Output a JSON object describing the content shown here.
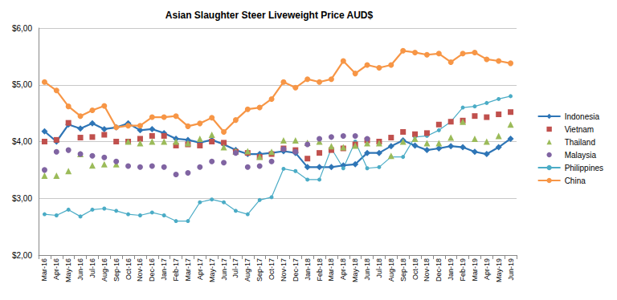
{
  "chart_data": {
    "type": "line",
    "title": "Asian Slaughter Steer Liveweight Price AUD$",
    "categories": [
      "Mar-16",
      "Apr-16",
      "May-16",
      "Jun-16",
      "Jul-16",
      "Aug-16",
      "Sep-16",
      "Oct-16",
      "Nov-16",
      "Dec-16",
      "Jan-17",
      "Feb-17",
      "Mar-17",
      "Apr-17",
      "May-17",
      "Jun-17",
      "Jul-17",
      "Aug-17",
      "Sep-17",
      "Oct-17",
      "Nov-17",
      "Dec-17",
      "Jan-18",
      "Feb-18",
      "Mar-18",
      "Apr-18",
      "May-18",
      "Jun-18",
      "Jul-18",
      "Aug-18",
      "Sep-18",
      "Oct-18",
      "Nov-18",
      "Dec-18",
      "Jan-19",
      "Feb-19",
      "Mar-19",
      "Apr-19",
      "May-19",
      "Jun-19"
    ],
    "ylim": [
      2,
      6
    ],
    "yticks": [
      {
        "value": 2,
        "label": "$2,00"
      },
      {
        "value": 3,
        "label": "$3,00"
      },
      {
        "value": 4,
        "label": "$4,00"
      },
      {
        "value": 5,
        "label": "$5,00"
      },
      {
        "value": 6,
        "label": "$6,00"
      }
    ],
    "grid": true,
    "legend": "right",
    "series": [
      {
        "name": "Indonesia",
        "color": "#2e75b6",
        "marker": "diamond",
        "line_style": "solid",
        "values": [
          4.18,
          4.0,
          4.3,
          4.23,
          4.32,
          4.22,
          4.25,
          4.32,
          4.2,
          4.22,
          4.15,
          4.05,
          4.03,
          3.98,
          4.03,
          3.95,
          3.85,
          3.78,
          3.78,
          3.8,
          3.83,
          3.8,
          3.55,
          3.55,
          3.55,
          3.58,
          3.6,
          3.8,
          3.8,
          3.92,
          4.02,
          3.93,
          3.85,
          3.88,
          3.92,
          3.9,
          3.82,
          3.78,
          3.9,
          4.05
        ]
      },
      {
        "name": "Vietnam",
        "color": "#c0504d",
        "marker": "square",
        "line_style": "none",
        "values": [
          4.0,
          4.03,
          4.33,
          4.07,
          4.08,
          4.12,
          4.0,
          4.0,
          4.05,
          4.1,
          4.1,
          3.93,
          3.95,
          3.93,
          4.0,
          3.98,
          3.82,
          3.8,
          3.73,
          3.78,
          3.88,
          3.85,
          3.7,
          3.8,
          3.85,
          3.88,
          3.95,
          4.02,
          4.0,
          4.07,
          4.17,
          4.13,
          4.15,
          4.3,
          4.35,
          4.37,
          4.45,
          4.43,
          4.48,
          4.52
        ]
      },
      {
        "name": "Thailand",
        "color": "#9bbb59",
        "marker": "triangle",
        "line_style": "none",
        "values": [
          3.4,
          3.4,
          3.48,
          3.78,
          3.58,
          3.6,
          3.6,
          4.0,
          3.97,
          4.0,
          4.0,
          4.0,
          3.97,
          4.05,
          4.12,
          3.9,
          3.83,
          3.83,
          3.73,
          3.82,
          4.02,
          4.02,
          3.98,
          4.0,
          3.92,
          3.9,
          3.93,
          3.97,
          3.97,
          3.75,
          4.0,
          4.05,
          3.97,
          3.97,
          4.07,
          4.35,
          4.05,
          4.0,
          4.1,
          4.3
        ]
      },
      {
        "name": "Malaysia",
        "color": "#8064a2",
        "marker": "circle",
        "line_style": "none",
        "values": [
          3.5,
          3.82,
          3.85,
          3.78,
          3.75,
          3.72,
          3.65,
          3.57,
          3.55,
          3.57,
          3.55,
          3.42,
          3.45,
          3.55,
          3.65,
          3.63,
          3.8,
          3.55,
          3.57,
          3.65,
          3.87,
          3.82,
          3.95,
          4.05,
          4.08,
          4.1,
          4.1,
          4.05,
          null,
          null,
          null,
          null,
          null,
          null,
          null,
          null,
          null,
          null,
          null,
          null
        ]
      },
      {
        "name": "Philippines",
        "color": "#4bacc6",
        "marker": "circle",
        "line_style": "solid",
        "values": [
          2.72,
          2.7,
          2.8,
          2.68,
          2.8,
          2.82,
          2.78,
          2.72,
          2.7,
          2.75,
          2.7,
          2.6,
          2.6,
          2.93,
          2.98,
          2.93,
          2.78,
          2.72,
          2.97,
          3.02,
          3.52,
          3.48,
          3.33,
          3.33,
          3.88,
          3.53,
          4.0,
          3.53,
          3.55,
          3.73,
          3.73,
          4.08,
          4.1,
          4.2,
          4.35,
          4.6,
          4.62,
          4.68,
          4.75,
          4.8
        ]
      },
      {
        "name": "China",
        "color": "#f79646",
        "marker": "circle",
        "line_style": "solid",
        "values": [
          5.05,
          4.9,
          4.62,
          4.45,
          4.55,
          4.63,
          4.25,
          4.28,
          4.28,
          4.43,
          4.43,
          4.45,
          4.27,
          4.32,
          4.42,
          4.17,
          4.38,
          4.57,
          4.6,
          4.75,
          5.05,
          4.95,
          5.1,
          5.05,
          5.1,
          5.42,
          5.2,
          5.35,
          5.3,
          5.35,
          5.6,
          5.57,
          5.53,
          5.55,
          5.4,
          5.55,
          5.57,
          5.45,
          5.42,
          5.38
        ]
      }
    ]
  }
}
